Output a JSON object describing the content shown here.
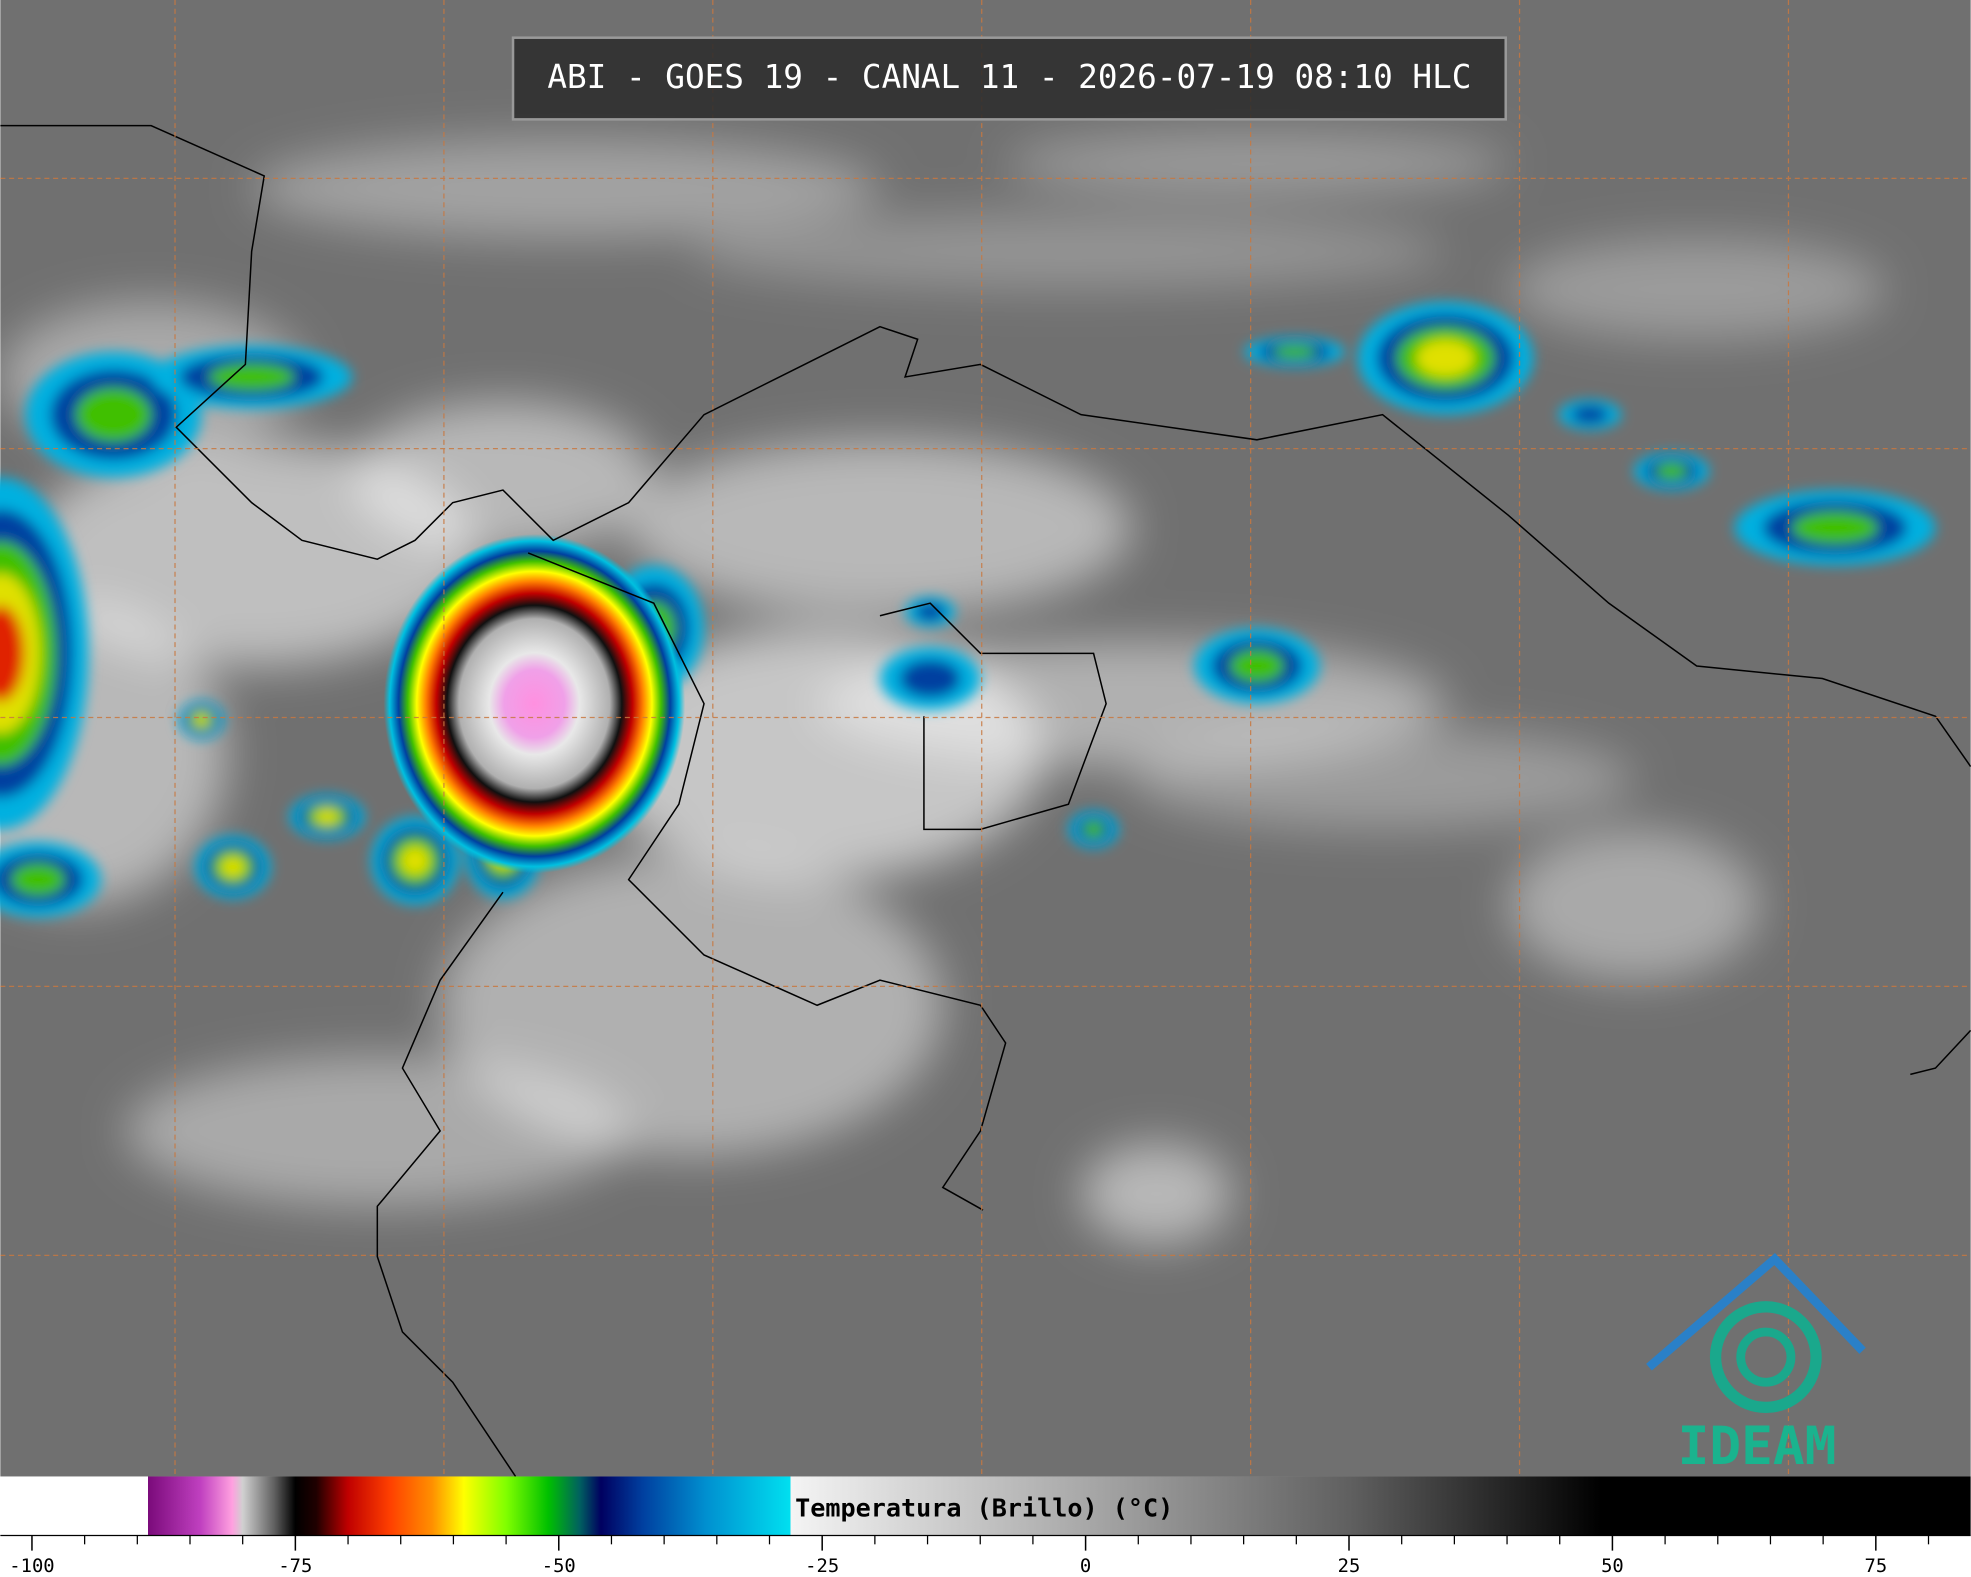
{
  "title": "ABI - GOES 19 - CANAL 11 - 2026-07-19 08:10 HLC",
  "colorbar": {
    "label": "Temperatura (Brillo) (°C)",
    "xlim": [
      -103,
      84
    ],
    "xticks": [
      -100,
      -75,
      -50,
      -25,
      0,
      25,
      50,
      75
    ],
    "minor_ticks": [
      -95,
      -90,
      -85,
      -80,
      -70,
      -65,
      -60,
      -55,
      -45,
      -40,
      -35,
      -30,
      -20,
      -15,
      -10,
      -5,
      5,
      10,
      15,
      20,
      30,
      35,
      40,
      45,
      55,
      60,
      65,
      70,
      80
    ],
    "stops": [
      {
        "value": -103,
        "color": "#ffffff"
      },
      {
        "value": -89,
        "color": "#ffffff"
      },
      {
        "value": -89,
        "color": "#7a0a7a"
      },
      {
        "value": -84,
        "color": "#c040c0"
      },
      {
        "value": -81,
        "color": "#ffa0e0"
      },
      {
        "value": -80,
        "color": "#d0d0d0"
      },
      {
        "value": -77,
        "color": "#606060"
      },
      {
        "value": -75,
        "color": "#000000"
      },
      {
        "value": -73,
        "color": "#200000"
      },
      {
        "value": -70,
        "color": "#c00000"
      },
      {
        "value": -66,
        "color": "#ff4000"
      },
      {
        "value": -62,
        "color": "#ff9000"
      },
      {
        "value": -59,
        "color": "#ffff00"
      },
      {
        "value": -55,
        "color": "#80ff00"
      },
      {
        "value": -51,
        "color": "#00c000"
      },
      {
        "value": -48,
        "color": "#006060"
      },
      {
        "value": -46,
        "color": "#000060"
      },
      {
        "value": -42,
        "color": "#0040a0"
      },
      {
        "value": -36,
        "color": "#0090d0"
      },
      {
        "value": -28,
        "color": "#00e0f0"
      },
      {
        "value": -28,
        "color": "#f4f4f4"
      },
      {
        "value": 0,
        "color": "#a8a8a8"
      },
      {
        "value": 25,
        "color": "#606060"
      },
      {
        "value": 49,
        "color": "#000000"
      },
      {
        "value": 84,
        "color": "#000000"
      }
    ]
  },
  "logo": "IDEAM"
}
